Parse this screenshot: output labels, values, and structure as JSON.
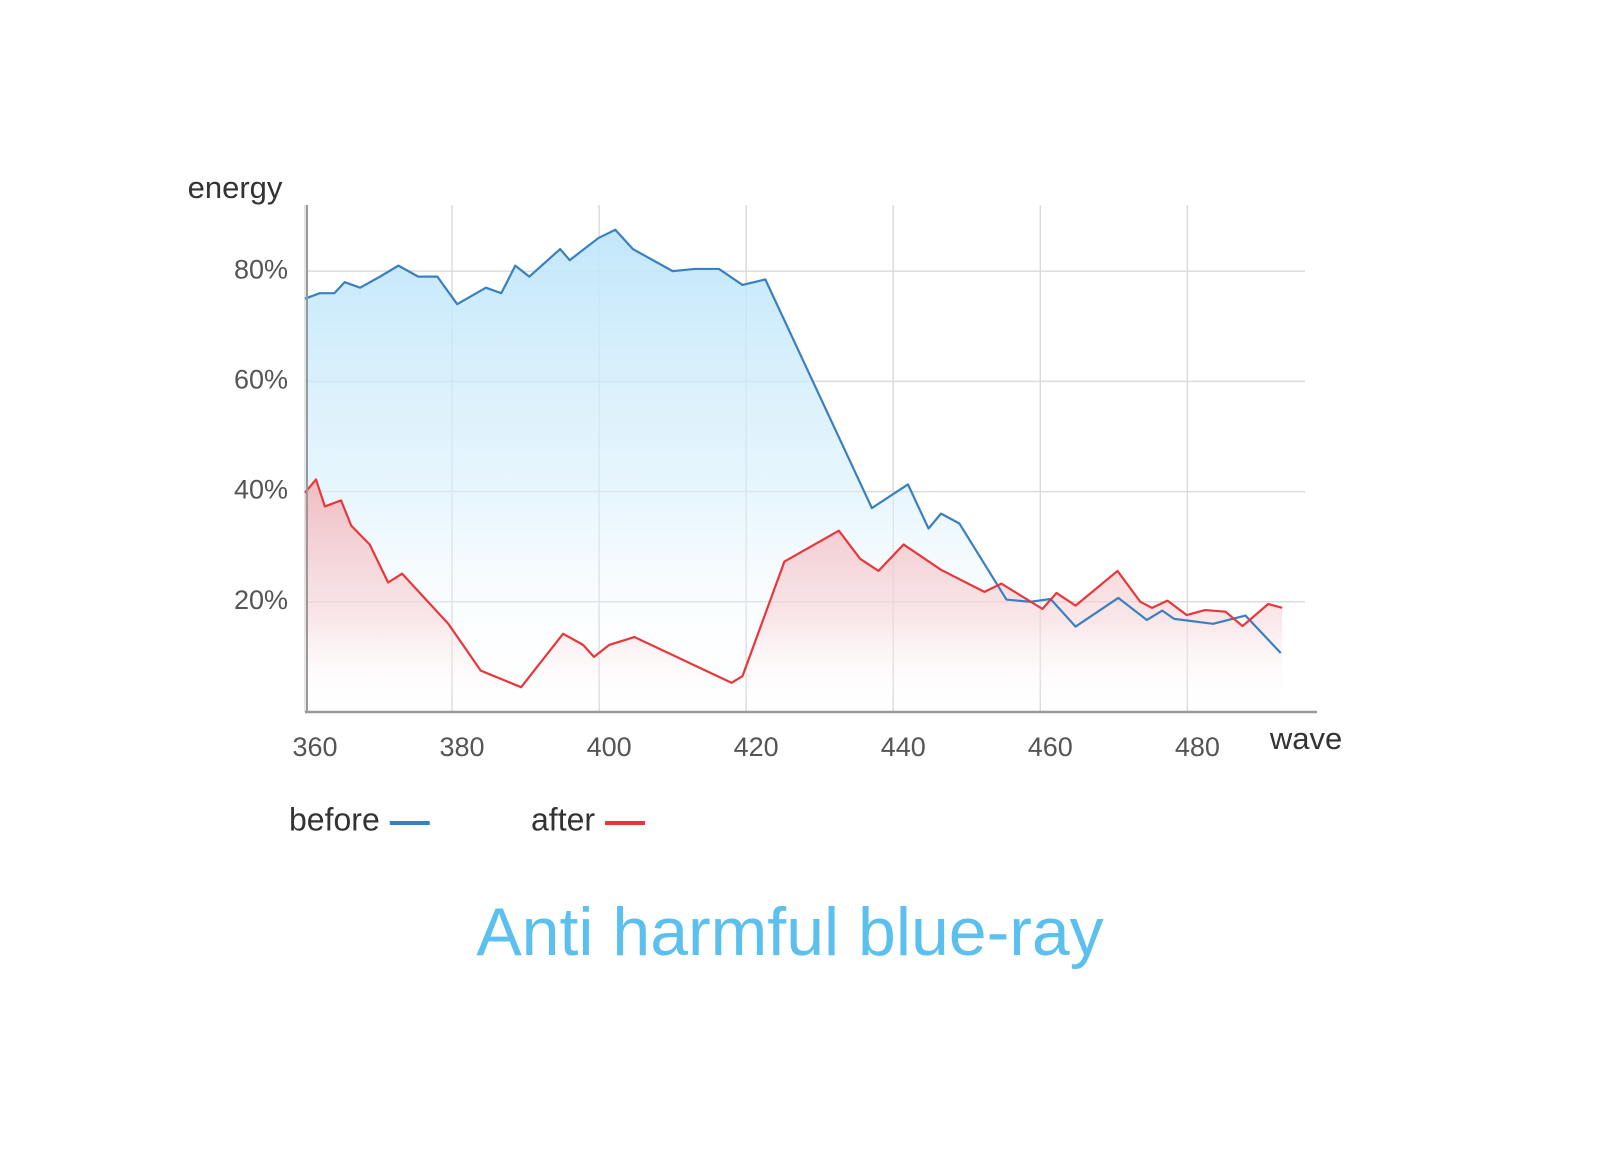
{
  "chart_data": {
    "type": "line",
    "title": "Anti harmful blue-ray",
    "x_label": "wave",
    "y_label": "energy",
    "xlim": [
      360,
      496
    ],
    "ylim": [
      0,
      92
    ],
    "xticks": [
      360,
      380,
      400,
      420,
      440,
      460,
      480
    ],
    "yticks": [
      {
        "value": 20,
        "label": "20%"
      },
      {
        "value": 40,
        "label": "40%"
      },
      {
        "value": 60,
        "label": "60%"
      },
      {
        "value": 80,
        "label": "80%"
      }
    ],
    "grid": true,
    "series": [
      {
        "name": "before",
        "color": "#3a80c0",
        "x": [
          360,
          362,
          364,
          365.4,
          367.5,
          370.2,
          372.7,
          375.4,
          378,
          380.7,
          384.6,
          386.7,
          388.6,
          390.5,
          394.7,
          396,
          399.9,
          402.2,
          404.6,
          410,
          413,
          416.3,
          419.5,
          422.6,
          437.1,
          442,
          444.8,
          446.5,
          449,
          455.4,
          458.6,
          461.4,
          464.8,
          470.6,
          474.5,
          476.6,
          478.2,
          483.5,
          487.9,
          492.7
        ],
        "values": [
          75,
          76,
          76,
          78,
          77,
          79,
          81,
          79,
          79,
          74,
          77,
          76,
          81,
          79,
          84,
          82,
          86,
          87.5,
          84,
          80,
          80.4,
          80.4,
          77.5,
          78.5,
          37,
          41.3,
          33.3,
          36,
          34.2,
          20.4,
          20,
          20.5,
          15.5,
          20.7,
          16.7,
          18.4,
          16.9,
          16,
          17.5,
          10.7
        ]
      },
      {
        "name": "after",
        "color": "#e8363a",
        "x": [
          360,
          361.5,
          362.7,
          364.9,
          366.3,
          368.8,
          371.3,
          373.2,
          379.5,
          383.9,
          389.4,
          395.1,
          397.8,
          399.3,
          401.4,
          404.8,
          418,
          419.5,
          425.2,
          432.6,
          435.5,
          438,
          441.4,
          446.5,
          452.4,
          454.7,
          460.3,
          462.2,
          464.8,
          470.5,
          473.6,
          475.2,
          477.3,
          479.9,
          482.4,
          485.2,
          487.5,
          491,
          492.9
        ],
        "values": [
          39.8,
          42.2,
          37.3,
          38.4,
          33.8,
          30.4,
          23.5,
          25.1,
          16,
          7.5,
          4.5,
          14.2,
          12.2,
          10,
          12.2,
          13.6,
          5.3,
          6.5,
          27.3,
          32.9,
          27.8,
          25.6,
          30.4,
          25.8,
          21.8,
          23.3,
          18.7,
          21.6,
          19.3,
          25.6,
          20,
          18.9,
          20.2,
          17.6,
          18.5,
          18.2,
          15.6,
          19.6,
          18.9
        ]
      }
    ]
  }
}
